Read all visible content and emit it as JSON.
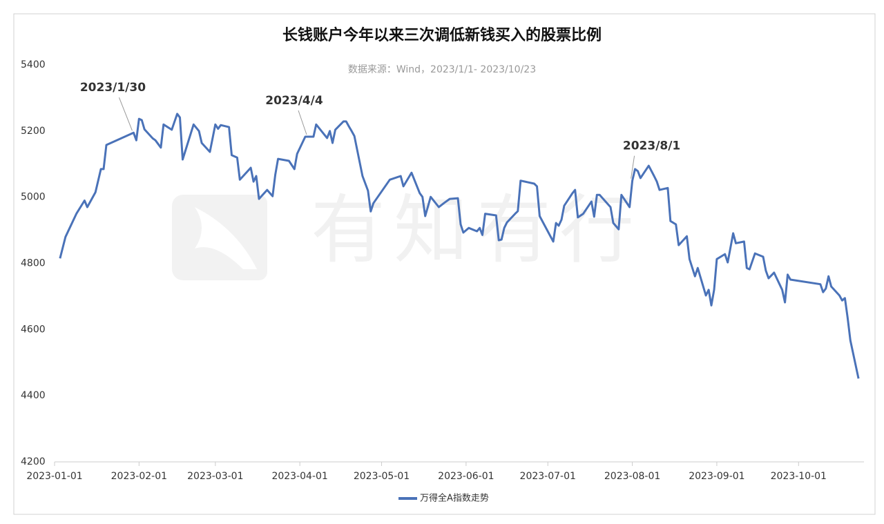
{
  "chart_data": {
    "type": "line",
    "title": "长钱账户今年以来三次调低新钱买入的股票比例",
    "subtitle": "数据来源：Wind，2023/1/1- 2023/10/23",
    "watermark": "有知有行",
    "x": [
      "2023-01-03",
      "2023-01-05",
      "2023-01-09",
      "2023-01-12",
      "2023-01-13",
      "2023-01-16",
      "2023-01-18",
      "2023-01-19",
      "2023-01-20",
      "2023-01-30",
      "2023-01-31",
      "2023-02-01",
      "2023-02-02",
      "2023-02-03",
      "2023-02-06",
      "2023-02-07",
      "2023-02-09",
      "2023-02-10",
      "2023-02-13",
      "2023-02-15",
      "2023-02-16",
      "2023-02-17",
      "2023-02-21",
      "2023-02-23",
      "2023-02-24",
      "2023-02-27",
      "2023-03-01",
      "2023-03-02",
      "2023-03-03",
      "2023-03-06",
      "2023-03-07",
      "2023-03-09",
      "2023-03-10",
      "2023-03-14",
      "2023-03-15",
      "2023-03-16",
      "2023-03-17",
      "2023-03-20",
      "2023-03-22",
      "2023-03-23",
      "2023-03-24",
      "2023-03-28",
      "2023-03-30",
      "2023-03-31",
      "2023-04-03",
      "2023-04-04",
      "2023-04-06",
      "2023-04-07",
      "2023-04-11",
      "2023-04-12",
      "2023-04-13",
      "2023-04-14",
      "2023-04-17",
      "2023-04-18",
      "2023-04-19",
      "2023-04-20",
      "2023-04-21",
      "2023-04-24",
      "2023-04-26",
      "2023-04-27",
      "2023-04-28",
      "2023-05-04",
      "2023-05-08",
      "2023-05-09",
      "2023-05-12",
      "2023-05-15",
      "2023-05-16",
      "2023-05-17",
      "2023-05-19",
      "2023-05-22",
      "2023-05-24",
      "2023-05-26",
      "2023-05-29",
      "2023-05-30",
      "2023-05-31",
      "2023-06-02",
      "2023-06-05",
      "2023-06-06",
      "2023-06-07",
      "2023-06-08",
      "2023-06-12",
      "2023-06-13",
      "2023-06-14",
      "2023-06-15",
      "2023-06-16",
      "2023-06-19",
      "2023-06-20",
      "2023-06-21",
      "2023-06-26",
      "2023-06-27",
      "2023-06-28",
      "2023-07-03",
      "2023-07-04",
      "2023-07-05",
      "2023-07-06",
      "2023-07-07",
      "2023-07-10",
      "2023-07-11",
      "2023-07-12",
      "2023-07-14",
      "2023-07-17",
      "2023-07-18",
      "2023-07-19",
      "2023-07-20",
      "2023-07-24",
      "2023-07-25",
      "2023-07-27",
      "2023-07-28",
      "2023-07-31",
      "2023-08-01",
      "2023-08-02",
      "2023-08-03",
      "2023-08-04",
      "2023-08-07",
      "2023-08-09",
      "2023-08-10",
      "2023-08-11",
      "2023-08-14",
      "2023-08-15",
      "2023-08-17",
      "2023-08-18",
      "2023-08-21",
      "2023-08-22",
      "2023-08-24",
      "2023-08-25",
      "2023-08-28",
      "2023-08-29",
      "2023-08-30",
      "2023-08-31",
      "2023-09-01",
      "2023-09-04",
      "2023-09-05",
      "2023-09-07",
      "2023-09-08",
      "2023-09-11",
      "2023-09-12",
      "2023-09-13",
      "2023-09-15",
      "2023-09-18",
      "2023-09-19",
      "2023-09-20",
      "2023-09-22",
      "2023-09-25",
      "2023-09-26",
      "2023-09-27",
      "2023-09-28",
      "2023-10-09",
      "2023-10-10",
      "2023-10-11",
      "2023-10-12",
      "2023-10-13",
      "2023-10-16",
      "2023-10-17",
      "2023-10-18",
      "2023-10-19",
      "2023-10-20",
      "2023-10-23"
    ],
    "series": [
      {
        "name": "万得全A指数走势",
        "color": "#4a72b8",
        "values": [
          4815,
          4880,
          4950,
          4990,
          4970,
          5015,
          5085,
          5085,
          5158,
          5195,
          5172,
          5237,
          5233,
          5205,
          5178,
          5172,
          5150,
          5220,
          5204,
          5252,
          5241,
          5114,
          5220,
          5200,
          5164,
          5137,
          5220,
          5207,
          5218,
          5212,
          5127,
          5120,
          5053,
          5089,
          5047,
          5064,
          4995,
          5022,
          5003,
          5068,
          5116,
          5110,
          5085,
          5131,
          5183,
          5183,
          5183,
          5220,
          5179,
          5200,
          5164,
          5204,
          5229,
          5229,
          5214,
          5200,
          5185,
          5064,
          5020,
          4957,
          4982,
          5053,
          5064,
          5033,
          5074,
          5012,
          5001,
          4943,
          5001,
          4970,
          4983,
          4995,
          4997,
          4918,
          4893,
          4907,
          4897,
          4907,
          4886,
          4950,
          4945,
          4870,
          4872,
          4907,
          4924,
          4950,
          4958,
          5050,
          5041,
          5033,
          4943,
          4866,
          4922,
          4914,
          4932,
          4974,
          5012,
          5022,
          4939,
          4950,
          4987,
          4941,
          5007,
          5007,
          4970,
          4922,
          4903,
          5007,
          4970,
          5050,
          5085,
          5079,
          5058,
          5095,
          5064,
          5047,
          5022,
          5028,
          4928,
          4918,
          4855,
          4882,
          4813,
          4761,
          4786,
          4703,
          4720,
          4673,
          4720,
          4813,
          4828,
          4803,
          4891,
          4861,
          4866,
          4786,
          4782,
          4830,
          4820,
          4778,
          4755,
          4772,
          4720,
          4682,
          4766,
          4751,
          4737,
          4713,
          4724,
          4761,
          4730,
          4703,
          4688,
          4695,
          4636,
          4567,
          4452
        ]
      }
    ],
    "annotations": [
      {
        "text": "2023/1/30",
        "x": "2023-01-30"
      },
      {
        "text": "2023/4/4",
        "x": "2023-04-04"
      },
      {
        "text": "2023/8/1",
        "x": "2023-08-01"
      }
    ],
    "xlim": [
      "2023-01-01",
      "2023-10-25"
    ],
    "xticks": [
      "2023-01-01",
      "2023-02-01",
      "2023-03-01",
      "2023-04-01",
      "2023-05-01",
      "2023-06-01",
      "2023-07-01",
      "2023-08-01",
      "2023-09-01",
      "2023-10-01"
    ],
    "ylim": [
      4200,
      5400
    ],
    "yticks": [
      4200,
      4400,
      4600,
      4800,
      5000,
      5200,
      5400
    ],
    "grid": false,
    "legend": "bottom"
  }
}
